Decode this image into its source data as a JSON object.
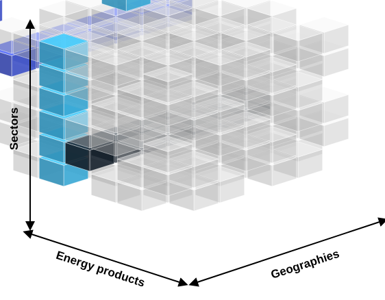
{
  "axes": {
    "vertical": "Sectors",
    "left": "Energy products",
    "right": "Geographies"
  },
  "colors": {
    "sector_slice": "#4f63de",
    "energy_column": "#3fb9ec",
    "geography_row": "#1a2633",
    "grid_block": "#d9d9d9"
  }
}
